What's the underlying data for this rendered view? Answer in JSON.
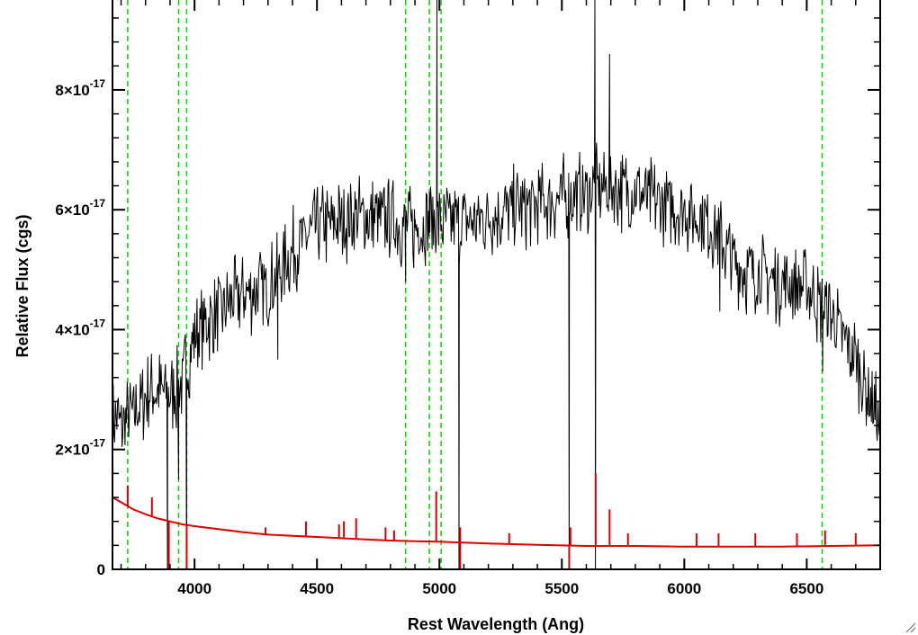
{
  "chart_data": {
    "type": "line",
    "xlabel": "Rest Wavelength (Ang)",
    "ylabel": "Relative Flux (cgs)",
    "xlim": [
      3665,
      6800
    ],
    "ylim": [
      0,
      9.5e-17
    ],
    "x_ticks": [
      {
        "value": 4000,
        "label": "4000"
      },
      {
        "value": 4500,
        "label": "4500"
      },
      {
        "value": 5000,
        "label": "5000"
      },
      {
        "value": 5500,
        "label": "5500"
      },
      {
        "value": 6000,
        "label": "6000"
      },
      {
        "value": 6500,
        "label": "6500"
      }
    ],
    "y_ticks": [
      {
        "value": 0,
        "mantissa": "0",
        "exponent": ""
      },
      {
        "value": 2e-17,
        "mantissa": "2×10",
        "exponent": "-17"
      },
      {
        "value": 4e-17,
        "mantissa": "4×10",
        "exponent": "-17"
      },
      {
        "value": 6e-17,
        "mantissa": "6×10",
        "exponent": "-17"
      },
      {
        "value": 8e-17,
        "mantissa": "8×10",
        "exponent": "-17"
      }
    ],
    "grid": false,
    "series": [
      {
        "color": "#000000",
        "style": "solid",
        "continuum": [
          [
            3665,
            2.6e-17
          ],
          [
            3700,
            2.4e-17
          ],
          [
            3750,
            2.6e-17
          ],
          [
            3800,
            2.9e-17
          ],
          [
            3850,
            3e-17
          ],
          [
            3900,
            2.9e-17
          ],
          [
            3950,
            3.1e-17
          ],
          [
            4000,
            3.9e-17
          ],
          [
            4100,
            4.3e-17
          ],
          [
            4200,
            4.6e-17
          ],
          [
            4300,
            4.7e-17
          ],
          [
            4400,
            5.3e-17
          ],
          [
            4500,
            5.7e-17
          ],
          [
            4600,
            5.8e-17
          ],
          [
            4700,
            5.9e-17
          ],
          [
            4800,
            5.8e-17
          ],
          [
            4900,
            5.7e-17
          ],
          [
            5000,
            5.8e-17
          ],
          [
            5100,
            5.8e-17
          ],
          [
            5200,
            5.9e-17
          ],
          [
            5300,
            6e-17
          ],
          [
            5400,
            6.1e-17
          ],
          [
            5500,
            6.2e-17
          ],
          [
            5600,
            6.3e-17
          ],
          [
            5700,
            6.4e-17
          ],
          [
            5800,
            6.3e-17
          ],
          [
            5900,
            6.1e-17
          ],
          [
            6000,
            6e-17
          ],
          [
            6100,
            5.8e-17
          ],
          [
            6140,
            5.6e-17
          ],
          [
            6200,
            5.1e-17
          ],
          [
            6300,
            4.9e-17
          ],
          [
            6400,
            4.8e-17
          ],
          [
            6500,
            4.7e-17
          ],
          [
            6600,
            4.2e-17
          ],
          [
            6700,
            3.5e-17
          ],
          [
            6800,
            2.4e-17
          ]
        ],
        "features": [
          [
            3890,
            -5e-18,
            0.0
          ],
          [
            3935,
            1.5e-17,
            6e-18
          ],
          [
            3968,
            -5e-18,
            0.0
          ],
          [
            4340,
            3.5e-17,
            1e-18
          ],
          [
            4862,
            4.8e-17,
            1e-18
          ],
          [
            4900,
            5.7e-17,
            5e-18
          ],
          [
            4959,
            6.3e-17,
            5e-18
          ],
          [
            4990,
            9.6e-17,
            0.0
          ],
          [
            5080,
            0.0,
            0.0
          ],
          [
            5530,
            0.0,
            0.0
          ],
          [
            5635,
            9.6e-17,
            0.0
          ],
          [
            5637,
            -1e-18,
            0.0
          ],
          [
            5695,
            8.6e-17,
            0.0
          ],
          [
            6145,
            4.3e-17,
            1e-18
          ],
          [
            6565,
            3.3e-17,
            2e-18
          ]
        ]
      },
      {
        "color": "#dd0000",
        "style": "solid",
        "continuum": [
          [
            3665,
            1.2e-17
          ],
          [
            3700,
            1.12e-17
          ],
          [
            3750,
            1e-17
          ],
          [
            3800,
            9.2e-18
          ],
          [
            3850,
            8.5e-18
          ],
          [
            3900,
            8e-18
          ],
          [
            3950,
            7.5e-18
          ],
          [
            4000,
            7.2e-18
          ],
          [
            4100,
            6.7e-18
          ],
          [
            4200,
            6.2e-18
          ],
          [
            4300,
            5.8e-18
          ],
          [
            4400,
            5.6e-18
          ],
          [
            4500,
            5.4e-18
          ],
          [
            4600,
            5.2e-18
          ],
          [
            4700,
            5e-18
          ],
          [
            4800,
            4.8e-18
          ],
          [
            4900,
            4.7e-18
          ],
          [
            5000,
            4.6e-18
          ],
          [
            5200,
            4.3e-18
          ],
          [
            5400,
            4.1e-18
          ],
          [
            5600,
            3.9e-18
          ],
          [
            5800,
            3.9e-18
          ],
          [
            6000,
            3.8e-18
          ],
          [
            6200,
            3.8e-18
          ],
          [
            6400,
            3.8e-18
          ],
          [
            6600,
            3.9e-18
          ],
          [
            6800,
            4e-18
          ]
        ],
        "spikes": [
          [
            3727,
            1.4e-17
          ],
          [
            3826,
            1.2e-17
          ],
          [
            3895,
            -2e-18
          ],
          [
            3968,
            -4e-18
          ],
          [
            4290,
            7e-18
          ],
          [
            4455,
            8e-18
          ],
          [
            4590,
            7.5e-18
          ],
          [
            4610,
            8e-18
          ],
          [
            4660,
            8.5e-18
          ],
          [
            4780,
            7e-18
          ],
          [
            4815,
            6.5e-18
          ],
          [
            4987,
            1.3e-17
          ],
          [
            5085,
            7e-18
          ],
          [
            5085,
            -5e-18
          ],
          [
            5285,
            6e-18
          ],
          [
            5530,
            -2e-18
          ],
          [
            5535,
            7e-18
          ],
          [
            5638,
            1.6e-17
          ],
          [
            5695,
            1e-17
          ],
          [
            5770,
            6e-18
          ],
          [
            6050,
            6e-18
          ],
          [
            6140,
            6e-18
          ],
          [
            6290,
            6e-18
          ],
          [
            6460,
            6e-18
          ],
          [
            6575,
            6.5e-18
          ],
          [
            6700,
            6e-18
          ]
        ]
      }
    ],
    "vertical_lines": {
      "color": "#00dd00",
      "style": "dashed",
      "x": [
        3727,
        3935,
        3968,
        4862,
        4959,
        5007,
        6563
      ]
    }
  }
}
